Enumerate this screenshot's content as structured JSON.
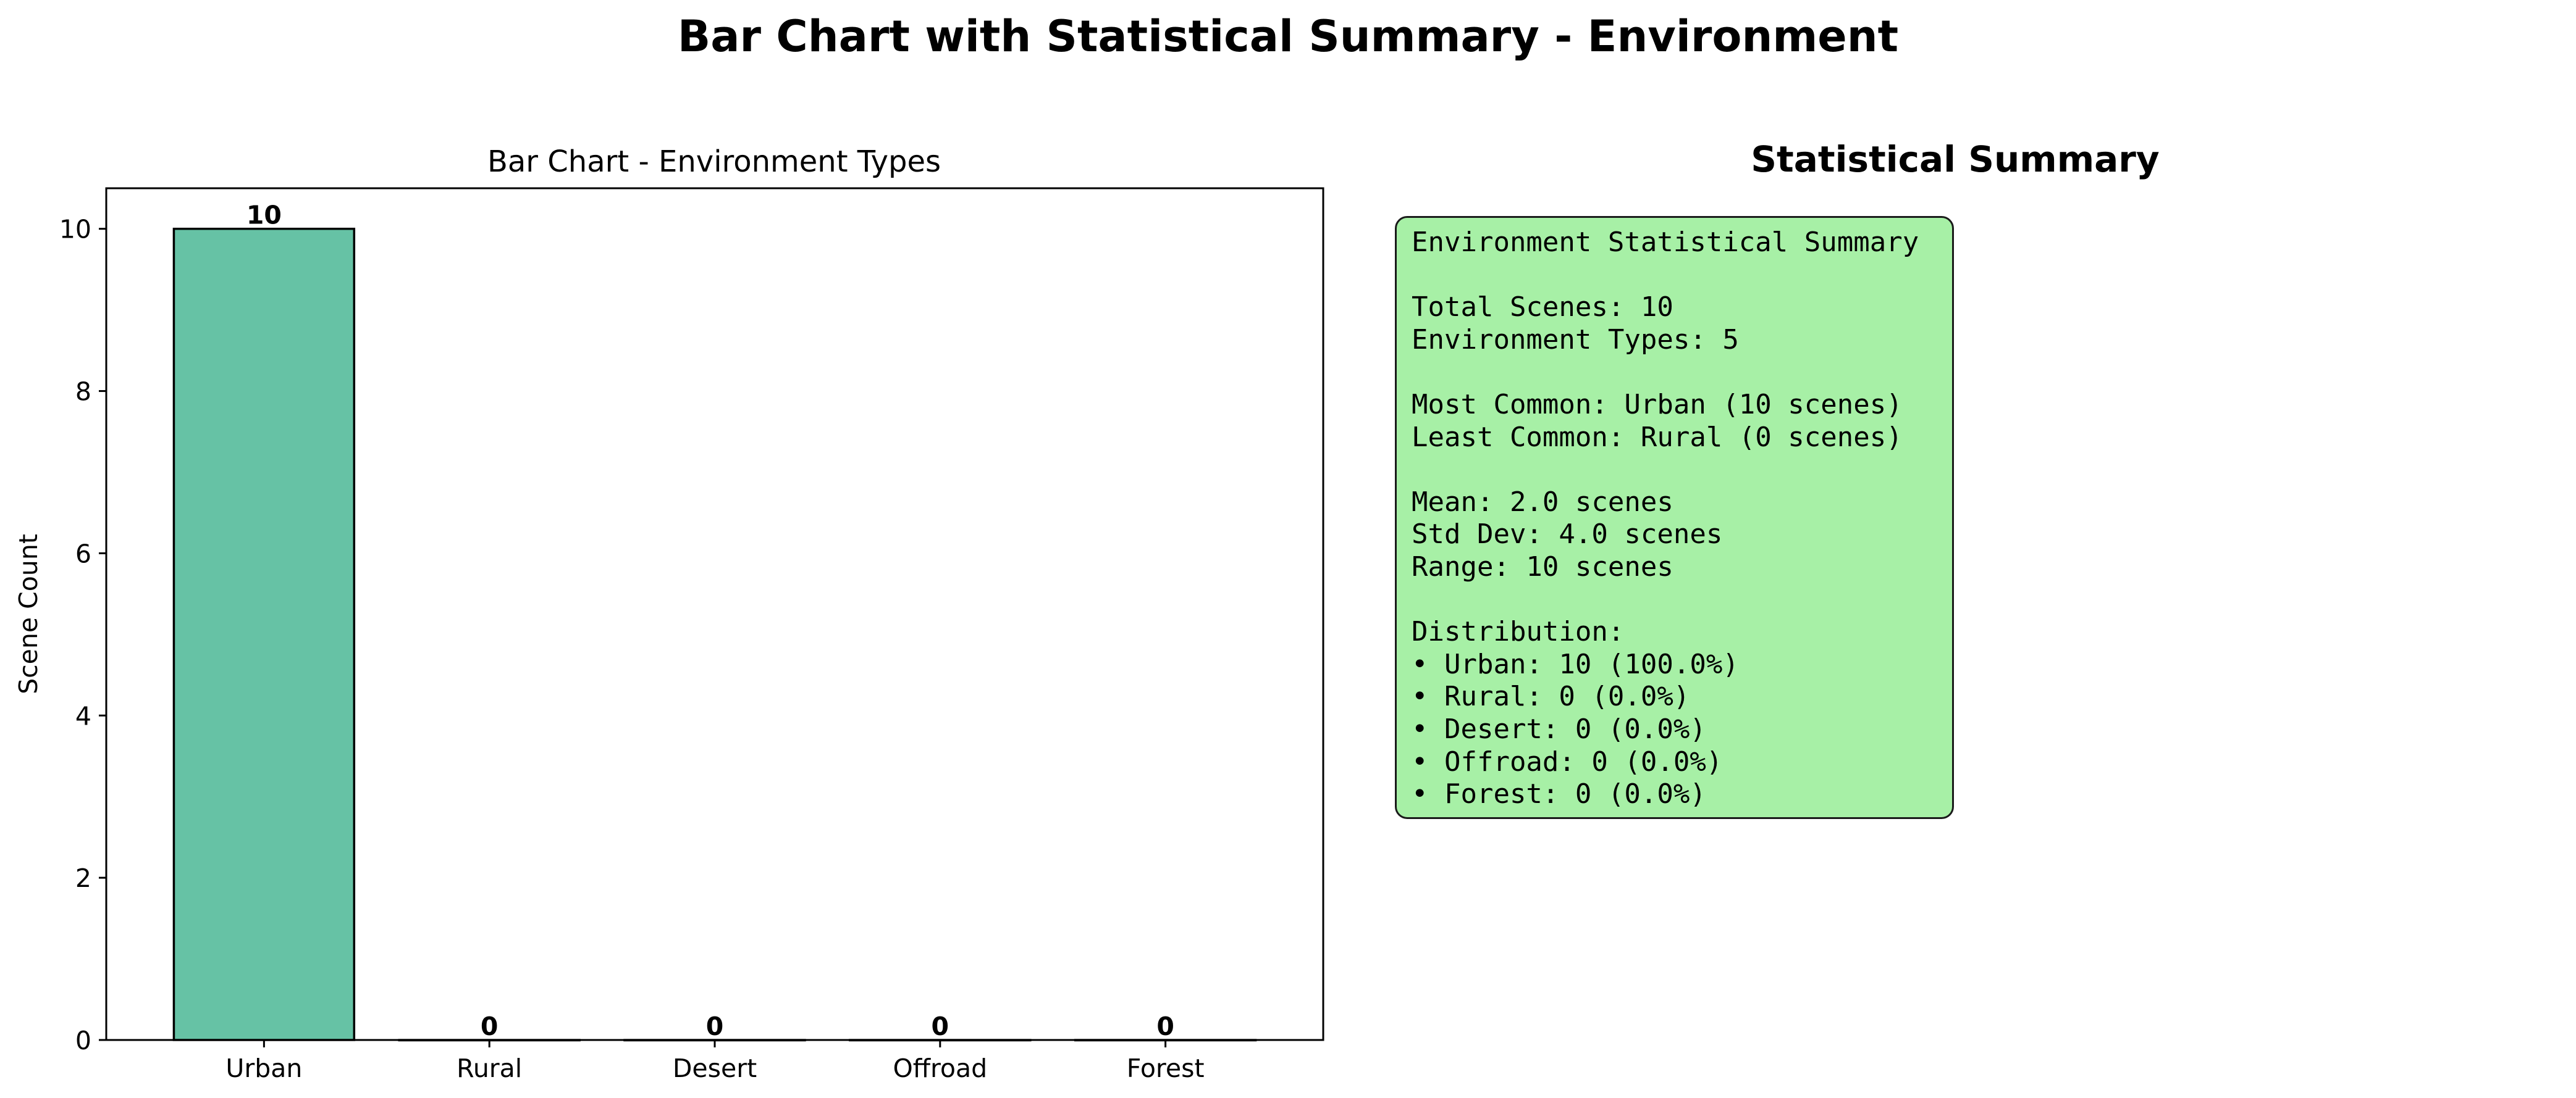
{
  "suptitle": "Bar Chart with Statistical Summary - Environment",
  "chart_data": {
    "type": "bar",
    "title": "Bar Chart - Environment Types",
    "xlabel": "",
    "ylabel": "Scene Count",
    "categories": [
      "Urban",
      "Rural",
      "Desert",
      "Offroad",
      "Forest"
    ],
    "values": [
      10,
      0,
      0,
      0,
      0
    ],
    "data_labels": [
      "10",
      "0",
      "0",
      "0",
      "0"
    ],
    "ylim": [
      0,
      10.5
    ],
    "yticks": [
      0,
      2,
      4,
      6,
      8,
      10
    ],
    "grid": false,
    "bar_color": "#66c2a5",
    "edge_color": "#000000"
  },
  "stats": {
    "title": "Statistical Summary",
    "box_color": "#a7f0a6",
    "lines": [
      "Environment Statistical Summary",
      "",
      "Total Scenes: 10",
      "Environment Types: 5",
      "",
      "Most Common: Urban (10 scenes)",
      "Least Common: Rural (0 scenes)",
      "",
      "Mean: 2.0 scenes",
      "Std Dev: 4.0 scenes",
      "Range: 10 scenes",
      "",
      "Distribution:",
      "• Urban: 10 (100.0%)",
      "• Rural: 0 (0.0%)",
      "• Desert: 0 (0.0%)",
      "• Offroad: 0 (0.0%)",
      "• Forest: 0 (0.0%)"
    ]
  }
}
